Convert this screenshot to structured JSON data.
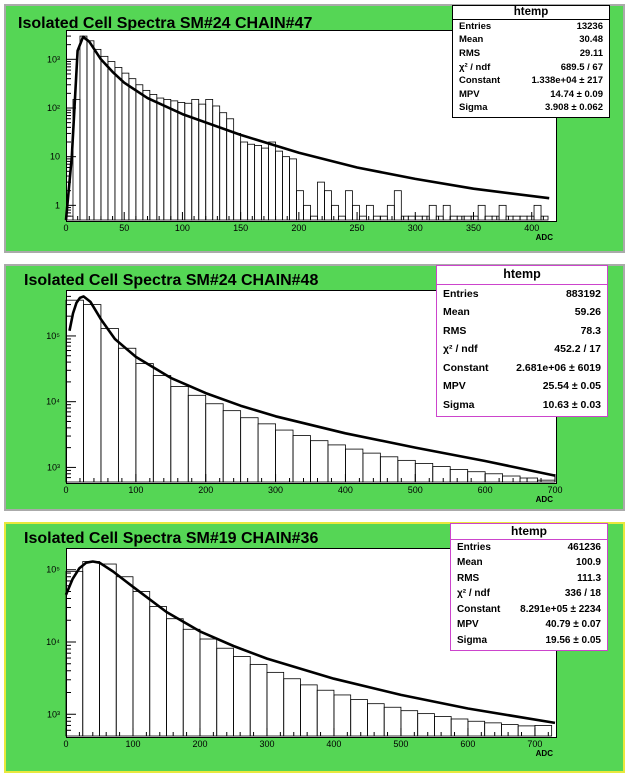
{
  "chart_data": [
    {
      "type": "histogram",
      "title": "Isolated Cell Spectra SM#24 CHAIN#47",
      "xlabel": "ADC",
      "xlim": [
        0,
        420
      ],
      "ylim": [
        0.5,
        4000
      ],
      "yscale": "log",
      "xticks": [
        "0",
        "50",
        "100",
        "150",
        "200",
        "250",
        "300",
        "350",
        "400"
      ],
      "yticks": [
        "1",
        "10",
        "10²",
        "10³"
      ],
      "stats": {
        "header": "htemp",
        "rows": [
          {
            "label": "Entries",
            "value": "13236"
          },
          {
            "label": "Mean",
            "value": "30.48"
          },
          {
            "label": "RMS",
            "value": "29.11"
          },
          {
            "label": "χ² / ndf",
            "value": "689.5 / 67"
          },
          {
            "label": "Constant",
            "value": "1.338e+04 ± 217"
          },
          {
            "label": "MPV",
            "value": "14.74 ± 0.09"
          },
          {
            "label": "Sigma",
            "value": "3.908 ± 0.062"
          }
        ]
      },
      "histogram": {
        "bin_width": 6,
        "x": [
          3,
          9,
          15,
          21,
          27,
          33,
          39,
          45,
          51,
          57,
          63,
          69,
          75,
          81,
          87,
          93,
          99,
          105,
          111,
          117,
          123,
          129,
          135,
          141,
          147,
          153,
          159,
          165,
          171,
          177,
          183,
          189,
          195,
          201,
          207,
          213,
          219,
          225,
          231,
          237,
          243,
          249,
          255,
          261,
          267,
          273,
          279,
          285,
          291,
          297,
          303,
          309,
          315,
          321,
          327,
          333,
          339,
          345,
          351,
          357,
          363,
          369,
          375,
          381,
          387,
          393,
          399,
          405,
          411
        ],
        "y": [
          0.6,
          150,
          3000,
          2400,
          1600,
          1150,
          900,
          680,
          520,
          400,
          300,
          230,
          190,
          160,
          150,
          140,
          130,
          125,
          150,
          120,
          150,
          110,
          80,
          60,
          30,
          20,
          18,
          17,
          15,
          20,
          13,
          10,
          9,
          2,
          1,
          0.6,
          3,
          2,
          1,
          0.6,
          2,
          1,
          0.6,
          1,
          0.6,
          0.6,
          1,
          2,
          0.6,
          0.6,
          0.6,
          0.6,
          1,
          0.6,
          1,
          0.6,
          0.6,
          0.6,
          0.6,
          1,
          0.6,
          0.6,
          1,
          0.6,
          0.6,
          0.6,
          0.6,
          1,
          0.6
        ]
      },
      "fit": {
        "x": [
          0,
          5,
          10,
          14.7,
          20,
          30,
          40,
          50,
          70,
          100,
          150,
          200,
          250,
          300,
          350,
          415
        ],
        "y": [
          0.5,
          10,
          1500,
          2900,
          2300,
          1000,
          550,
          330,
          160,
          75,
          28,
          12,
          6,
          3.5,
          2.2,
          1.4
        ]
      }
    },
    {
      "type": "histogram",
      "title": "Isolated Cell Spectra SM#24 CHAIN#48",
      "xlabel": "ADC",
      "xlim": [
        0,
        700
      ],
      "ylim": [
        600,
        500000
      ],
      "yscale": "log",
      "xticks": [
        "0",
        "100",
        "200",
        "300",
        "400",
        "500",
        "600",
        "700"
      ],
      "yticks": [
        "10³",
        "10⁴",
        "10⁵"
      ],
      "stats": {
        "header": "htemp",
        "rows": [
          {
            "label": "Entries",
            "value": "883192"
          },
          {
            "label": "Mean",
            "value": "59.26"
          },
          {
            "label": "RMS",
            "value": "78.3"
          },
          {
            "label": "χ² / ndf",
            "value": "452.2 / 17"
          },
          {
            "label": "Constant",
            "value": "2.681e+06 ± 6019"
          },
          {
            "label": "MPV",
            "value": "25.54 ± 0.05"
          },
          {
            "label": "Sigma",
            "value": "10.63 ± 0.03"
          }
        ]
      },
      "histogram": {
        "bin_width": 25,
        "x": [
          12.5,
          37.5,
          62.5,
          87.5,
          112.5,
          137.5,
          162.5,
          187.5,
          212.5,
          237.5,
          262.5,
          287.5,
          312.5,
          337.5,
          362.5,
          387.5,
          412.5,
          437.5,
          462.5,
          487.5,
          512.5,
          537.5,
          562.5,
          587.5,
          612.5,
          637.5,
          662.5,
          687.5
        ],
        "y": [
          350000,
          300000,
          130000,
          65000,
          38000,
          25000,
          17000,
          12500,
          9300,
          7300,
          5700,
          4600,
          3700,
          3050,
          2550,
          2200,
          1900,
          1650,
          1450,
          1280,
          1150,
          1030,
          930,
          860,
          800,
          740,
          690,
          640
        ]
      },
      "fit": {
        "x": [
          5,
          10,
          15,
          20,
          25,
          35,
          50,
          70,
          100,
          150,
          200,
          250,
          300,
          400,
          500,
          600,
          700
        ],
        "y": [
          120000,
          220000,
          320000,
          380000,
          400000,
          330000,
          180000,
          90000,
          48000,
          23000,
          13500,
          8700,
          6000,
          3300,
          2000,
          1250,
          750
        ]
      }
    },
    {
      "type": "histogram",
      "title": "Isolated Cell Spectra SM#19 CHAIN#36",
      "xlabel": "ADC",
      "xlim": [
        0,
        730
      ],
      "ylim": [
        500,
        200000
      ],
      "yscale": "log",
      "xticks": [
        "0",
        "100",
        "200",
        "300",
        "400",
        "500",
        "600",
        "700"
      ],
      "yticks": [
        "10³",
        "10⁴",
        "10⁵"
      ],
      "stats": {
        "header": "htemp",
        "rows": [
          {
            "label": "Entries",
            "value": "461236"
          },
          {
            "label": "Mean",
            "value": "100.9"
          },
          {
            "label": "RMS",
            "value": "111.3"
          },
          {
            "label": "χ² / ndf",
            "value": "336 / 18"
          },
          {
            "label": "Constant",
            "value": "8.291e+05 ± 2234"
          },
          {
            "label": "MPV",
            "value": "40.79 ± 0.07"
          },
          {
            "label": "Sigma",
            "value": "19.56 ± 0.05"
          }
        ]
      },
      "histogram": {
        "bin_width": 25,
        "x": [
          12.5,
          37.5,
          62.5,
          87.5,
          112.5,
          137.5,
          162.5,
          187.5,
          212.5,
          237.5,
          262.5,
          287.5,
          312.5,
          337.5,
          362.5,
          387.5,
          412.5,
          437.5,
          462.5,
          487.5,
          512.5,
          537.5,
          562.5,
          587.5,
          612.5,
          637.5,
          662.5,
          687.5,
          712.5
        ],
        "y": [
          95000,
          130000,
          120000,
          80000,
          50000,
          31000,
          21000,
          15000,
          11000,
          8200,
          6300,
          4900,
          3800,
          3100,
          2550,
          2150,
          1850,
          1600,
          1400,
          1250,
          1120,
          1020,
          930,
          860,
          800,
          760,
          720,
          690,
          700
        ]
      },
      "fit": {
        "x": [
          0,
          10,
          20,
          30,
          40,
          50,
          70,
          100,
          150,
          200,
          250,
          300,
          400,
          500,
          600,
          730
        ],
        "y": [
          45000,
          75000,
          105000,
          125000,
          130000,
          125000,
          95000,
          58000,
          26000,
          14000,
          8800,
          5900,
          3100,
          1850,
          1200,
          760
        ]
      }
    }
  ]
}
